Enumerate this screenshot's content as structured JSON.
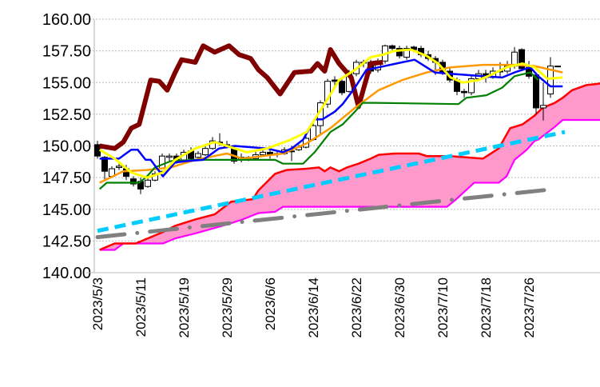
{
  "chart_data": {
    "type": "candlestick",
    "title": "",
    "ylim": [
      140,
      160
    ],
    "yticks": [
      "140.00",
      "142.50",
      "145.00",
      "147.50",
      "150.00",
      "152.50",
      "155.00",
      "157.50",
      "160.00"
    ],
    "xticks": [
      {
        "index": 0,
        "label": "2023/5/3"
      },
      {
        "index": 6,
        "label": "2023/5/11"
      },
      {
        "index": 12,
        "label": "2023/5/19"
      },
      {
        "index": 18,
        "label": "2023/5/29"
      },
      {
        "index": 24,
        "label": "2023/6/6"
      },
      {
        "index": 30,
        "label": "2023/6/14"
      },
      {
        "index": 36,
        "label": "2023/6/22"
      },
      {
        "index": 42,
        "label": "2023/6/30"
      },
      {
        "index": 48,
        "label": "2023/7/10"
      },
      {
        "index": 54,
        "label": "2023/7/18"
      },
      {
        "index": 60,
        "label": "2023/7/26"
      }
    ],
    "grid": true,
    "candles": [
      [
        150.1,
        149.2,
        150.4,
        149.0
      ],
      [
        149.1,
        148.0,
        149.2,
        147.2
      ],
      [
        147.6,
        148.2,
        148.4,
        147.5
      ],
      [
        148.3,
        148.4,
        148.7,
        148.1
      ],
      [
        148.2,
        147.6,
        148.5,
        147.3
      ],
      [
        147.4,
        147.0,
        147.6,
        146.8
      ],
      [
        147.2,
        146.6,
        147.5,
        146.2
      ],
      [
        146.8,
        147.3,
        147.6,
        146.7
      ],
      [
        147.3,
        147.8,
        148.0,
        147.2
      ],
      [
        148.0,
        149.2,
        149.4,
        147.9
      ],
      [
        149.1,
        149.2,
        149.4,
        148.8
      ],
      [
        149.2,
        148.8,
        149.4,
        148.6
      ],
      [
        148.9,
        149.5,
        149.7,
        148.8
      ],
      [
        149.6,
        149.0,
        149.9,
        148.9
      ],
      [
        149.1,
        149.4,
        149.6,
        148.8
      ],
      [
        149.3,
        149.8,
        150.0,
        149.2
      ],
      [
        149.8,
        150.4,
        150.7,
        149.7
      ],
      [
        150.3,
        150.2,
        151.0,
        150.0
      ],
      [
        150.1,
        149.9,
        150.4,
        149.8
      ],
      [
        149.8,
        148.8,
        150.0,
        148.6
      ],
      [
        148.9,
        149.1,
        149.4,
        148.7
      ],
      [
        149.1,
        149.0,
        149.2,
        148.8
      ],
      [
        149.0,
        149.3,
        149.6,
        148.9
      ],
      [
        149.3,
        149.5,
        149.8,
        149.2
      ],
      [
        149.5,
        149.3,
        149.8,
        149.0
      ],
      [
        149.4,
        149.4,
        149.6,
        149.1
      ],
      [
        149.4,
        149.7,
        149.9,
        149.3
      ],
      [
        149.6,
        149.6,
        150.0,
        148.8
      ],
      [
        149.7,
        149.9,
        150.1,
        149.6
      ],
      [
        149.9,
        150.6,
        150.9,
        149.8
      ],
      [
        150.5,
        151.6,
        151.8,
        150.4
      ],
      [
        151.6,
        153.4,
        153.6,
        150.9
      ],
      [
        153.3,
        155.1,
        155.3,
        153.0
      ],
      [
        155.2,
        155.1,
        155.5,
        154.7
      ],
      [
        155.1,
        154.2,
        155.3,
        154.0
      ],
      [
        154.3,
        155.8,
        156.0,
        154.2
      ],
      [
        155.7,
        156.6,
        156.8,
        155.5
      ],
      [
        156.6,
        156.6,
        156.8,
        156.2
      ],
      [
        156.6,
        155.9,
        156.8,
        155.7
      ],
      [
        156.0,
        156.7,
        156.9,
        155.8
      ],
      [
        156.7,
        157.9,
        158.0,
        156.5
      ],
      [
        157.9,
        157.7,
        158.0,
        157.5
      ],
      [
        157.7,
        157.1,
        157.9,
        156.9
      ],
      [
        157.0,
        157.7,
        157.9,
        156.8
      ],
      [
        157.8,
        157.6,
        157.9,
        157.4
      ],
      [
        157.7,
        157.2,
        157.9,
        157.0
      ],
      [
        157.2,
        156.9,
        157.5,
        156.7
      ],
      [
        156.9,
        156.6,
        157.1,
        155.6
      ],
      [
        156.6,
        155.8,
        156.8,
        155.6
      ],
      [
        155.9,
        155.2,
        156.2,
        155.0
      ],
      [
        155.2,
        154.3,
        155.4,
        154.0
      ],
      [
        154.3,
        154.2,
        154.5,
        153.8
      ],
      [
        154.2,
        155.3,
        155.5,
        154.0
      ],
      [
        155.3,
        155.7,
        156.0,
        155.1
      ],
      [
        155.7,
        155.4,
        156.0,
        155.0
      ],
      [
        155.4,
        155.9,
        156.2,
        155.3
      ],
      [
        155.9,
        155.9,
        156.6,
        155.5
      ],
      [
        155.9,
        156.3,
        156.7,
        155.7
      ],
      [
        156.3,
        157.4,
        157.8,
        156.1
      ],
      [
        157.6,
        156.1,
        157.7,
        155.9
      ],
      [
        156.2,
        155.5,
        156.7,
        155.3
      ],
      [
        155.6,
        153.0,
        155.8,
        152.5
      ],
      [
        153.0,
        153.2,
        155.0,
        152.0
      ],
      [
        154.1,
        156.3,
        157.0,
        153.8
      ],
      [
        156.3,
        156.3,
        156.3,
        156.3
      ]
    ],
    "series": [
      {
        "name": "senkou-span-b",
        "color": "#ff00ff",
        "points": [
          [
            0.3,
            141.8
          ],
          [
            2.4,
            141.8
          ],
          [
            3.6,
            142.3
          ],
          [
            9.1,
            142.3
          ],
          [
            10.8,
            142.7
          ],
          [
            13.6,
            143.1
          ],
          [
            18,
            143.8
          ],
          [
            20.2,
            144.2
          ],
          [
            22.4,
            144.7
          ],
          [
            24.7,
            144.8
          ],
          [
            25.8,
            145.2
          ],
          [
            48.6,
            145.2
          ],
          [
            49.7,
            145.7
          ],
          [
            52.4,
            147.1
          ],
          [
            55.8,
            147.1
          ],
          [
            56.9,
            147.6
          ],
          [
            58,
            148.9
          ],
          [
            59.7,
            149.7
          ],
          [
            60.8,
            150.4
          ],
          [
            61.3,
            150.5
          ],
          [
            63.6,
            151.5
          ],
          [
            64.7,
            152.05
          ],
          [
            70.3,
            152.05
          ]
        ]
      },
      {
        "name": "senkou-span-a",
        "color": "#ff0000",
        "points": [
          [
            0.3,
            141.8
          ],
          [
            2.4,
            142.3
          ],
          [
            5.3,
            142.3
          ],
          [
            9.1,
            143.2
          ],
          [
            10.8,
            143.7
          ],
          [
            13.6,
            144.2
          ],
          [
            16.3,
            144.6
          ],
          [
            18.6,
            145.6
          ],
          [
            20.2,
            145.7
          ],
          [
            21.6,
            145.8
          ],
          [
            22.4,
            146.5
          ],
          [
            24.7,
            147.8
          ],
          [
            26.3,
            148.1
          ],
          [
            29.1,
            148.2
          ],
          [
            30.8,
            148.3
          ],
          [
            31.6,
            148.0
          ],
          [
            32.4,
            148.3
          ],
          [
            33.6,
            148.0
          ],
          [
            34.7,
            148.3
          ],
          [
            36.3,
            148.6
          ],
          [
            38,
            149.0
          ],
          [
            39.1,
            149.3
          ],
          [
            41.3,
            149.4
          ],
          [
            44.7,
            149.4
          ],
          [
            45.8,
            149.2
          ],
          [
            49.1,
            149.2
          ],
          [
            53.6,
            149.0
          ],
          [
            55.8,
            149.8
          ],
          [
            57.4,
            151.4
          ],
          [
            59.1,
            151.7
          ],
          [
            60.8,
            152.4
          ],
          [
            61.9,
            153.0
          ],
          [
            63.6,
            153.4
          ],
          [
            64.7,
            153.8
          ],
          [
            66,
            154.4
          ],
          [
            68,
            154.8
          ],
          [
            69.7,
            154.9
          ],
          [
            70.3,
            155.0
          ]
        ]
      },
      {
        "name": "trend-line",
        "color": "#00ccff",
        "points": [
          [
            0,
            143.3
          ],
          [
            65,
            151.1
          ]
        ]
      },
      {
        "name": "long-term-line",
        "color": "#808080",
        "points": [
          [
            0,
            142.8
          ],
          [
            63.6,
            146.6
          ]
        ]
      },
      {
        "name": "ma-long",
        "color": "#ff9900",
        "points": [
          [
            0.3,
            147.1
          ],
          [
            3.6,
            148.0
          ],
          [
            6.9,
            148.1
          ],
          [
            10.2,
            148.3
          ],
          [
            13.6,
            148.9
          ],
          [
            18,
            149.4
          ],
          [
            20.2,
            149.0
          ],
          [
            25.8,
            149.4
          ],
          [
            29.1,
            150.2
          ],
          [
            32.4,
            151.4
          ],
          [
            35.8,
            153.0
          ],
          [
            39.1,
            154.4
          ],
          [
            42.4,
            155.2
          ],
          [
            45.8,
            155.8
          ],
          [
            49.1,
            156.2
          ],
          [
            53.6,
            156.4
          ],
          [
            58,
            156.4
          ],
          [
            60.8,
            156.3
          ],
          [
            64.7,
            155.8
          ]
        ]
      },
      {
        "name": "kijun-sen",
        "color": "#008000",
        "points": [
          [
            0.3,
            146.6
          ],
          [
            1.3,
            147.1
          ],
          [
            5.8,
            147.1
          ],
          [
            6.9,
            147.6
          ],
          [
            8,
            148.3
          ],
          [
            10.2,
            148.8
          ],
          [
            13.6,
            148.9
          ],
          [
            24.7,
            148.9
          ],
          [
            25.8,
            148.6
          ],
          [
            28.6,
            148.6
          ],
          [
            30.2,
            149.5
          ],
          [
            32.4,
            151.1
          ],
          [
            34.1,
            151.7
          ],
          [
            35.8,
            152.7
          ],
          [
            36.9,
            153.4
          ],
          [
            38.6,
            153.4
          ],
          [
            50.2,
            153.3
          ],
          [
            51.3,
            153.8
          ],
          [
            54.1,
            154.0
          ],
          [
            56.3,
            154.6
          ],
          [
            58,
            155.5
          ],
          [
            60.2,
            155.8
          ],
          [
            61.3,
            155.2
          ]
        ]
      },
      {
        "name": "tenkan-sen",
        "color": "#0000ff",
        "points": [
          [
            0.3,
            149.0
          ],
          [
            3,
            149.0
          ],
          [
            4.7,
            149.7
          ],
          [
            5.6,
            149.7
          ],
          [
            6.7,
            148.9
          ],
          [
            7.4,
            148.9
          ],
          [
            9.1,
            147.6
          ],
          [
            10.8,
            148.7
          ],
          [
            12.4,
            148.8
          ],
          [
            14.7,
            148.9
          ],
          [
            16.9,
            149.8
          ],
          [
            19.1,
            150.0
          ],
          [
            23.6,
            149.8
          ],
          [
            25.8,
            149.5
          ],
          [
            27,
            149.8
          ],
          [
            28.6,
            150.5
          ],
          [
            30.2,
            152.1
          ],
          [
            31.3,
            152.1
          ],
          [
            33,
            152.7
          ],
          [
            34.1,
            153.3
          ],
          [
            35.8,
            154.6
          ],
          [
            37.4,
            156.0
          ],
          [
            39.1,
            156.2
          ],
          [
            42.4,
            156.6
          ],
          [
            44.1,
            156.8
          ],
          [
            46.9,
            155.8
          ],
          [
            49.1,
            155.7
          ],
          [
            53.6,
            155.5
          ],
          [
            56.3,
            155.4
          ],
          [
            58,
            155.8
          ],
          [
            60.2,
            156.2
          ],
          [
            61.3,
            155.5
          ],
          [
            63,
            154.7
          ],
          [
            64.7,
            154.7
          ]
        ]
      },
      {
        "name": "ma-short",
        "color": "#ffff00",
        "points": [
          [
            0.3,
            149.7
          ],
          [
            2.4,
            149.0
          ],
          [
            4.7,
            147.9
          ],
          [
            6.9,
            147.5
          ],
          [
            9.1,
            147.9
          ],
          [
            10.8,
            148.9
          ],
          [
            13.6,
            149.8
          ],
          [
            16.3,
            150.3
          ],
          [
            19.1,
            149.8
          ],
          [
            20.8,
            149.5
          ],
          [
            23.6,
            149.8
          ],
          [
            26.9,
            150.5
          ],
          [
            29.1,
            151.1
          ],
          [
            31.9,
            153.6
          ],
          [
            33.6,
            155.2
          ],
          [
            35.8,
            156.0
          ],
          [
            38,
            157.0
          ],
          [
            39.7,
            157.2
          ],
          [
            41.3,
            157.5
          ],
          [
            43.6,
            157.6
          ],
          [
            45.8,
            157.1
          ],
          [
            47.4,
            156.5
          ],
          [
            49.1,
            155.4
          ],
          [
            50.8,
            155.0
          ],
          [
            53,
            155.2
          ],
          [
            54.7,
            155.6
          ],
          [
            56.9,
            156.2
          ],
          [
            59.1,
            156.5
          ],
          [
            60.8,
            156.2
          ],
          [
            62.6,
            155.3
          ],
          [
            64.7,
            155.4
          ]
        ]
      },
      {
        "name": "chikou-span",
        "color": "#800000",
        "points": [
          [
            0.3,
            150.0
          ],
          [
            2.4,
            149.8
          ],
          [
            3.6,
            150.3
          ],
          [
            4.7,
            151.4
          ],
          [
            5.8,
            151.7
          ],
          [
            7.4,
            155.2
          ],
          [
            8.6,
            155.1
          ],
          [
            9.7,
            154.4
          ],
          [
            10.8,
            155.8
          ],
          [
            11.7,
            156.8
          ],
          [
            13.6,
            156.6
          ],
          [
            14.7,
            157.9
          ],
          [
            16.3,
            157.4
          ],
          [
            18.3,
            157.9
          ],
          [
            19.7,
            157.2
          ],
          [
            21.3,
            156.9
          ],
          [
            22.4,
            156.0
          ],
          [
            23.6,
            155.4
          ],
          [
            25.4,
            154.1
          ],
          [
            27.4,
            155.8
          ],
          [
            29.7,
            155.9
          ],
          [
            30.6,
            156.5
          ],
          [
            31.6,
            155.9
          ],
          [
            32.4,
            157.6
          ],
          [
            33.6,
            156.5
          ],
          [
            35.3,
            155.4
          ],
          [
            36.3,
            153.1
          ],
          [
            38,
            156.5
          ],
          [
            39.7,
            156.6
          ]
        ]
      }
    ],
    "cloud_fill": "#ff99cc"
  }
}
